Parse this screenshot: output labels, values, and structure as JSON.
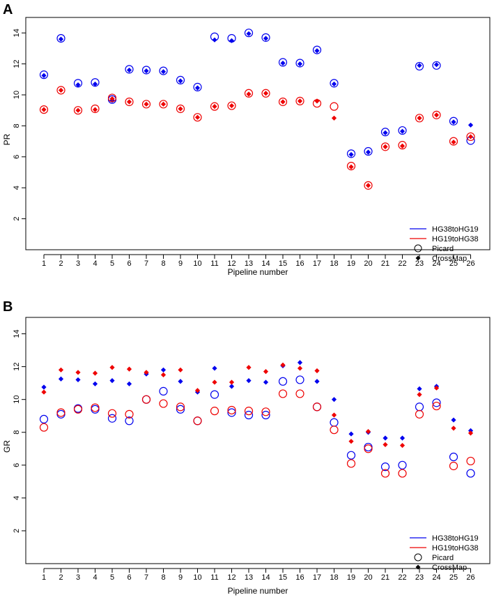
{
  "chart_data": [
    {
      "panel": "A",
      "type": "scatter",
      "title": "",
      "xlabel": "Pipeline number",
      "ylabel": "PR",
      "xlim": [
        0.5,
        26.5
      ],
      "ylim": [
        0,
        15
      ],
      "x_ticks": [
        1,
        2,
        3,
        4,
        5,
        6,
        7,
        8,
        9,
        10,
        11,
        12,
        13,
        14,
        15,
        16,
        17,
        18,
        19,
        20,
        21,
        22,
        23,
        24,
        25,
        26
      ],
      "y_ticks": [
        2,
        4,
        6,
        8,
        10,
        12,
        14
      ],
      "categories": [
        "1",
        "2",
        "3",
        "4",
        "5",
        "6",
        "7",
        "8",
        "9",
        "10",
        "11",
        "12",
        "13",
        "14",
        "15",
        "16",
        "17",
        "18",
        "19",
        "20",
        "21",
        "22",
        "23",
        "24",
        "25",
        "26"
      ],
      "legend": {
        "position": "bottom-right",
        "entries": [
          {
            "label": "HG38toHG19",
            "kind": "line",
            "color": "#0000ee"
          },
          {
            "label": "HG19toHG38",
            "kind": "line",
            "color": "#ee0000"
          },
          {
            "label": "Picard",
            "kind": "open-circle",
            "color": "#000000"
          },
          {
            "label": "CrossMap",
            "kind": "diamond",
            "color": "#000000"
          }
        ]
      },
      "series": [
        {
          "name": "HG38toHG19 Picard",
          "color": "#0000ee",
          "marker": "circle",
          "values": [
            11.3,
            13.65,
            10.75,
            10.8,
            9.7,
            11.65,
            11.6,
            11.55,
            10.95,
            10.5,
            13.75,
            13.65,
            14.0,
            13.7,
            12.1,
            12.05,
            12.9,
            10.75,
            6.2,
            6.35,
            7.6,
            7.7,
            11.85,
            11.9,
            8.3,
            7.05
          ]
        },
        {
          "name": "HG38toHG19 CrossMap",
          "color": "#0000ee",
          "marker": "diamond",
          "values": [
            11.25,
            13.6,
            10.65,
            10.7,
            9.65,
            11.6,
            11.55,
            11.5,
            10.9,
            10.45,
            13.55,
            13.5,
            13.95,
            13.65,
            12.05,
            12.0,
            12.85,
            10.7,
            6.15,
            6.3,
            7.55,
            7.65,
            11.9,
            11.95,
            8.25,
            8.05
          ]
        },
        {
          "name": "HG19toHG38 Picard",
          "color": "#ee0000",
          "marker": "circle",
          "values": [
            9.05,
            10.3,
            9.0,
            9.1,
            9.8,
            9.55,
            9.4,
            9.4,
            9.1,
            8.55,
            9.25,
            9.3,
            10.1,
            10.1,
            9.55,
            9.6,
            9.45,
            9.25,
            5.4,
            4.15,
            6.65,
            6.75,
            8.5,
            8.7,
            7.0,
            7.3
          ]
        },
        {
          "name": "HG19toHG38 CrossMap",
          "color": "#ee0000",
          "marker": "diamond",
          "values": [
            9.05,
            10.3,
            9.0,
            9.05,
            9.75,
            9.55,
            9.4,
            9.4,
            9.1,
            8.55,
            9.25,
            9.3,
            10.05,
            10.1,
            9.55,
            9.6,
            9.6,
            8.5,
            5.35,
            4.15,
            6.65,
            6.7,
            8.5,
            8.7,
            6.95,
            7.3
          ]
        }
      ]
    },
    {
      "panel": "B",
      "type": "scatter",
      "title": "",
      "xlabel": "Pipeline number",
      "ylabel": "GR",
      "xlim": [
        0.5,
        26.5
      ],
      "ylim": [
        0,
        15
      ],
      "x_ticks": [
        1,
        2,
        3,
        4,
        5,
        6,
        7,
        8,
        9,
        10,
        11,
        12,
        13,
        14,
        15,
        16,
        17,
        18,
        19,
        20,
        21,
        22,
        23,
        24,
        25,
        26
      ],
      "y_ticks": [
        2,
        4,
        6,
        8,
        10,
        12,
        14
      ],
      "categories": [
        "1",
        "2",
        "3",
        "4",
        "5",
        "6",
        "7",
        "8",
        "9",
        "10",
        "11",
        "12",
        "13",
        "14",
        "15",
        "16",
        "17",
        "18",
        "19",
        "20",
        "21",
        "22",
        "23",
        "24",
        "25",
        "26"
      ],
      "legend": {
        "position": "bottom-right",
        "entries": [
          {
            "label": "HG38toHG19",
            "kind": "line",
            "color": "#0000ee"
          },
          {
            "label": "HG19toHG38",
            "kind": "line",
            "color": "#ee0000"
          },
          {
            "label": "Picard",
            "kind": "open-circle",
            "color": "#000000"
          },
          {
            "label": "CrossMap",
            "kind": "diamond",
            "color": "#000000"
          }
        ]
      },
      "series": [
        {
          "name": "HG38toHG19 Picard",
          "color": "#0000ee",
          "marker": "circle",
          "values": [
            8.8,
            9.1,
            9.45,
            9.4,
            8.85,
            8.7,
            10.0,
            10.5,
            9.4,
            8.7,
            10.3,
            9.2,
            9.05,
            9.05,
            11.1,
            11.2,
            9.55,
            8.6,
            6.6,
            7.1,
            5.9,
            6.0,
            9.55,
            9.8,
            6.5,
            5.5
          ]
        },
        {
          "name": "HG38toHG19 CrossMap",
          "color": "#0000ee",
          "marker": "diamond",
          "values": [
            10.75,
            11.25,
            11.2,
            10.95,
            11.15,
            10.95,
            11.55,
            11.8,
            11.1,
            10.45,
            11.9,
            10.8,
            11.15,
            11.05,
            12.05,
            12.25,
            11.1,
            10.0,
            7.9,
            8.0,
            7.65,
            7.65,
            10.65,
            10.8,
            8.75,
            8.1
          ]
        },
        {
          "name": "HG19toHG38 Picard",
          "color": "#ee0000",
          "marker": "circle",
          "values": [
            8.3,
            9.2,
            9.4,
            9.5,
            9.15,
            9.1,
            10.0,
            9.75,
            9.55,
            8.7,
            9.3,
            9.35,
            9.3,
            9.25,
            10.35,
            10.35,
            9.55,
            8.15,
            6.1,
            7.0,
            5.5,
            5.5,
            9.1,
            9.6,
            5.95,
            6.25
          ]
        },
        {
          "name": "HG19toHG38 CrossMap",
          "color": "#ee0000",
          "marker": "diamond",
          "values": [
            10.45,
            11.8,
            11.65,
            11.6,
            11.95,
            11.85,
            11.65,
            11.5,
            11.8,
            10.55,
            11.05,
            11.05,
            11.95,
            11.7,
            12.1,
            11.9,
            11.75,
            9.05,
            7.45,
            8.05,
            7.25,
            7.2,
            10.3,
            10.7,
            8.25,
            7.95
          ]
        }
      ]
    }
  ]
}
